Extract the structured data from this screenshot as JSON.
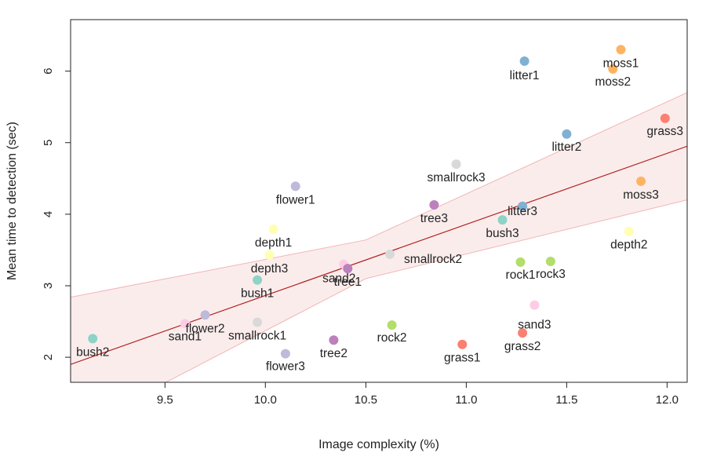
{
  "chart_data": {
    "type": "scatter",
    "title": "",
    "xlabel": "Image complexity (%)",
    "ylabel": "Mean time to detection (sec)",
    "xlim": [
      9.03,
      12.1
    ],
    "ylim": [
      1.65,
      6.72
    ],
    "xticks": [
      "9.5",
      "10.0",
      "10.5",
      "11.0",
      "11.5",
      "12.0"
    ],
    "yticks": [
      "2",
      "3",
      "4",
      "5",
      "6"
    ],
    "grid": false,
    "legend": "none",
    "points": [
      {
        "label": "bush1",
        "x": 9.96,
        "y": 3.08,
        "color": "#8dd3c7"
      },
      {
        "label": "bush2",
        "x": 9.14,
        "y": 2.26,
        "color": "#8dd3c7"
      },
      {
        "label": "bush3",
        "x": 11.18,
        "y": 3.92,
        "color": "#8dd3c7"
      },
      {
        "label": "depth1",
        "x": 10.04,
        "y": 3.79,
        "color": "#ffffb3"
      },
      {
        "label": "depth2",
        "x": 11.81,
        "y": 3.76,
        "color": "#ffffb3"
      },
      {
        "label": "depth3",
        "x": 10.02,
        "y": 3.43,
        "color": "#ffffb3"
      },
      {
        "label": "flower1",
        "x": 10.15,
        "y": 4.39,
        "color": "#bebada"
      },
      {
        "label": "flower2",
        "x": 9.7,
        "y": 2.59,
        "color": "#bebada"
      },
      {
        "label": "flower3",
        "x": 10.1,
        "y": 2.05,
        "color": "#bebada"
      },
      {
        "label": "grass1",
        "x": 10.98,
        "y": 2.18,
        "color": "#fb8072"
      },
      {
        "label": "grass2",
        "x": 11.28,
        "y": 2.34,
        "color": "#fb8072"
      },
      {
        "label": "grass3",
        "x": 11.99,
        "y": 5.34,
        "color": "#fb8072"
      },
      {
        "label": "litter1",
        "x": 11.29,
        "y": 6.14,
        "color": "#80b1d3"
      },
      {
        "label": "litter2",
        "x": 11.5,
        "y": 5.12,
        "color": "#80b1d3"
      },
      {
        "label": "litter3",
        "x": 11.28,
        "y": 4.11,
        "color": "#80b1d3"
      },
      {
        "label": "moss1",
        "x": 11.77,
        "y": 6.3,
        "color": "#fdb462"
      },
      {
        "label": "moss2",
        "x": 11.73,
        "y": 6.03,
        "color": "#fdb462"
      },
      {
        "label": "moss3",
        "x": 11.87,
        "y": 4.46,
        "color": "#fdb462"
      },
      {
        "label": "rock1",
        "x": 11.27,
        "y": 3.33,
        "color": "#b3de69"
      },
      {
        "label": "rock2",
        "x": 10.63,
        "y": 2.45,
        "color": "#b3de69"
      },
      {
        "label": "rock3",
        "x": 11.42,
        "y": 3.34,
        "color": "#b3de69"
      },
      {
        "label": "sand1",
        "x": 9.6,
        "y": 2.47,
        "color": "#fccde5"
      },
      {
        "label": "sand2",
        "x": 10.39,
        "y": 3.3,
        "color": "#fccde5"
      },
      {
        "label": "sand3",
        "x": 11.34,
        "y": 2.73,
        "color": "#fccde5"
      },
      {
        "label": "smallrock1",
        "x": 9.96,
        "y": 2.49,
        "color": "#d9d9d9"
      },
      {
        "label": "smallrock2",
        "x": 10.62,
        "y": 3.44,
        "color": "#d9d9d9"
      },
      {
        "label": "smallrock3",
        "x": 10.95,
        "y": 4.7,
        "color": "#d9d9d9"
      },
      {
        "label": "tree1",
        "x": 10.41,
        "y": 3.24,
        "color": "#bc80bd"
      },
      {
        "label": "tree2",
        "x": 10.34,
        "y": 2.24,
        "color": "#bc80bd"
      },
      {
        "label": "tree3",
        "x": 10.84,
        "y": 4.13,
        "color": "#bc80bd"
      }
    ],
    "regression": {
      "line_color": "#b22222",
      "band_color": "#fbecec",
      "band_edge_color": "#f2b5b5",
      "fit": [
        {
          "x": 9.03,
          "y": 1.9
        },
        {
          "x": 12.1,
          "y": 4.95
        }
      ],
      "upper": [
        {
          "x": 9.03,
          "y": 2.84
        },
        {
          "x": 10.5,
          "y": 3.64
        },
        {
          "x": 12.1,
          "y": 5.7
        }
      ],
      "lower": [
        {
          "x": 9.03,
          "y": 0.96
        },
        {
          "x": 10.5,
          "y": 3.1
        },
        {
          "x": 12.1,
          "y": 4.2
        }
      ]
    }
  }
}
